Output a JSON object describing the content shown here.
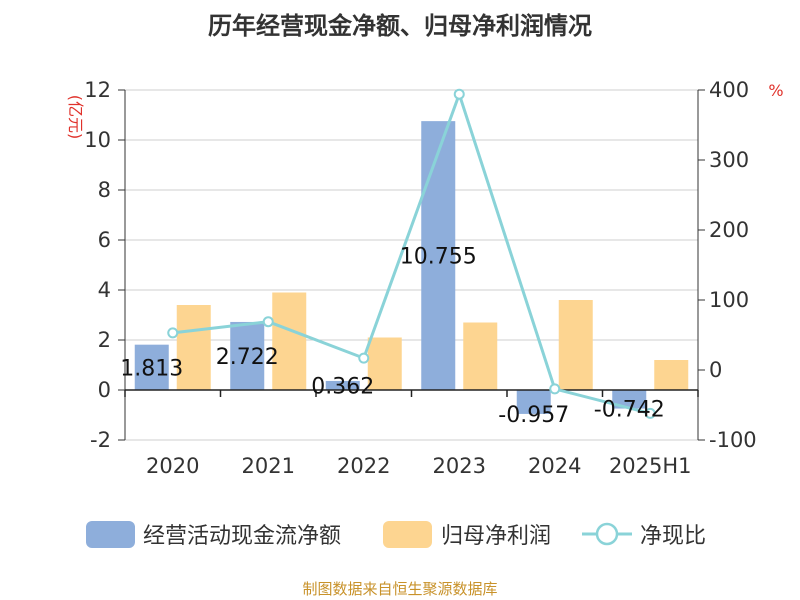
{
  "chart_data": {
    "type": "bar",
    "title": "历年经营现金净额、归母净利润情况",
    "y_unit_left": "(亿元)",
    "y_unit_right": "%",
    "categories": [
      "2020",
      "2021",
      "2022",
      "2023",
      "2024",
      "2025H1"
    ],
    "series": [
      {
        "name": "经营活动现金流净额",
        "type": "bar",
        "axis": "left",
        "color": "#8eaedb",
        "values": [
          1.813,
          2.722,
          0.362,
          10.755,
          -0.957,
          -0.742
        ],
        "labels": [
          "1.813",
          "2.722",
          "0.362",
          "10.755",
          "-0.957",
          "-0.742"
        ]
      },
      {
        "name": "归母净利润",
        "type": "bar",
        "axis": "left",
        "color": "#fdd591",
        "values": [
          3.4,
          3.9,
          2.1,
          2.7,
          3.6,
          1.2
        ]
      },
      {
        "name": "净现比",
        "type": "line",
        "axis": "right",
        "color": "#8ad3d8",
        "values": [
          53,
          69,
          17,
          394,
          -27,
          -62
        ]
      }
    ],
    "y_left": {
      "min": -2,
      "max": 12,
      "ticks": [
        "-2",
        "0",
        "2",
        "4",
        "6",
        "8",
        "10",
        "12"
      ]
    },
    "y_right": {
      "min": -100,
      "max": 400,
      "ticks": [
        "-100",
        "0",
        "100",
        "200",
        "300",
        "400"
      ]
    },
    "grid": true,
    "legend_position": "bottom"
  },
  "source_text": "制图数据来自恒生聚源数据库"
}
